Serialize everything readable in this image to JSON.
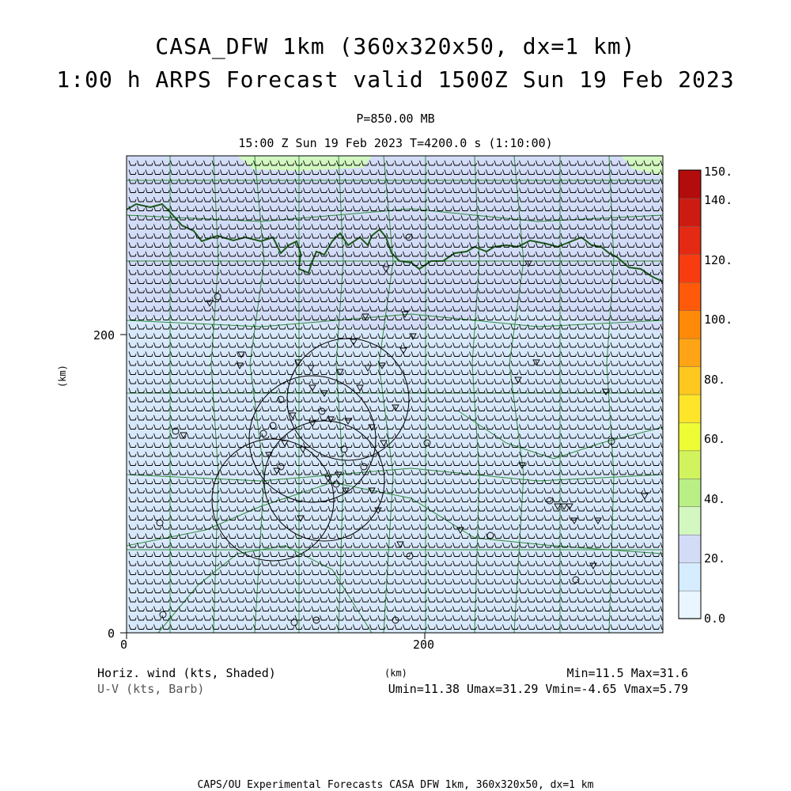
{
  "header": {
    "title_line1": "CASA_DFW 1km (360x320x50, dx=1 km)",
    "title_line2": "1:00 h ARPS Forecast valid 1500Z Sun 19 Feb 2023",
    "pressure_level": "P=850.00 MB",
    "time_line": "15:00 Z Sun 19 Feb 2023   T=4200.0 s (1:10:00)"
  },
  "axes": {
    "x_ticks": [
      "0",
      "200"
    ],
    "y_ticks": [
      "0",
      "200"
    ],
    "x_label": "(km)",
    "y_label": "(km)"
  },
  "colorbar": {
    "labels": [
      "0.0",
      "20.",
      "40.",
      "60.",
      "80.",
      "100.",
      "120.",
      "140.",
      "150."
    ],
    "colors": [
      "#e9f6ff",
      "#d6ecff",
      "#d3dcf7",
      "#d3f7c1",
      "#b9ef85",
      "#d1f35d",
      "#eefc36",
      "#ffe52a",
      "#ffc81e",
      "#ffa414",
      "#ff8a0a",
      "#ff5a0a",
      "#f93c10",
      "#e52a14",
      "#cc1c12",
      "#b20c0c"
    ]
  },
  "legend": {
    "field_label": "Horiz. wind (kts, Shaded)",
    "vector_label": "U-V (kts, Barb)",
    "minmax": "Min=11.5 Max=31.6",
    "uv_stats": "Umin=11.38 Umax=31.29 Vmin=-4.65 Vmax=5.79"
  },
  "footer": {
    "text": "CAPS/OU Experimental Forecasts  CASA DFW 1km, 360x320x50, dx=1 km"
  },
  "map_colors": {
    "low_wind": "#d8e8fb",
    "mid_wind": "#d3dcf7",
    "high_wind": "#d3f7c1",
    "county_lines": "#2e8b3e",
    "state_line": "#1c5a1c",
    "radar_rings": "#000000"
  }
}
